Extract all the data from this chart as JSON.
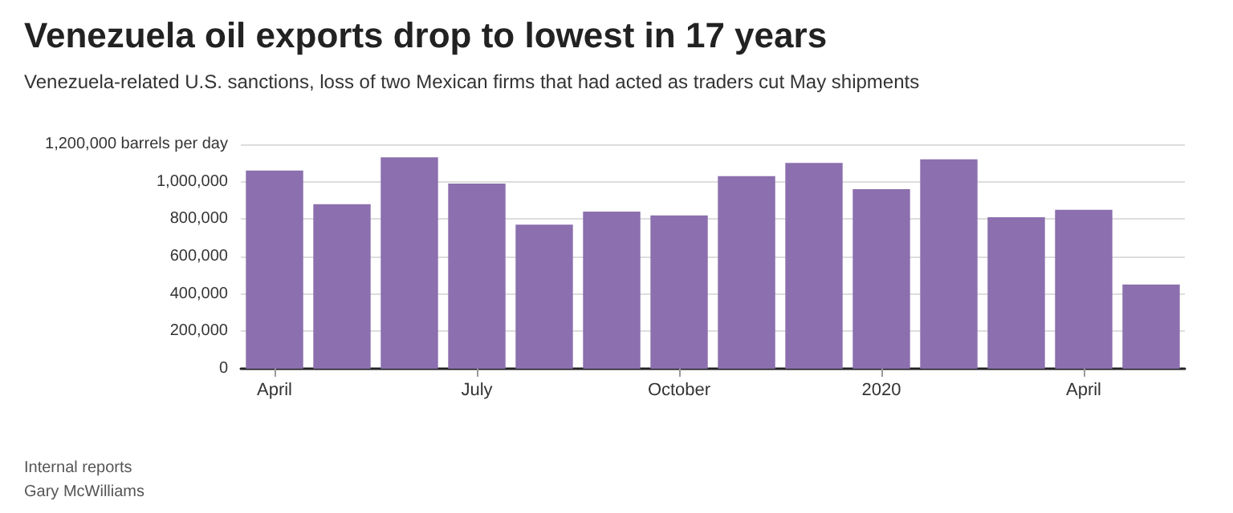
{
  "chart_data": {
    "type": "bar",
    "title": "Venezuela oil exports drop to lowest in 17 years",
    "subtitle": "Venezuela-related U.S. sanctions, loss of two Mexican firms that had acted as traders cut May shipments",
    "categories": [
      "April",
      null,
      null,
      "July",
      null,
      null,
      "October",
      null,
      null,
      "2020",
      null,
      null,
      "April",
      null
    ],
    "values": [
      1060000,
      880000,
      1130000,
      990000,
      770000,
      840000,
      820000,
      1030000,
      1100000,
      960000,
      1120000,
      810000,
      850000,
      450000
    ],
    "color": "#8b6fae",
    "ylim": [
      0,
      1200000
    ],
    "yticks": [
      0,
      {
        "value": 200000,
        "label": "200,000"
      },
      {
        "value": 400000,
        "label": "400,000"
      },
      {
        "value": 600000,
        "label": "600,000"
      },
      {
        "value": 800000,
        "label": "800,000"
      },
      {
        "value": 1000000,
        "label": "1,000,000"
      },
      {
        "value": 1200000,
        "label": "1,200,000 barrels per day"
      }
    ],
    "grid": "y",
    "annotations": [
      "Internal reports",
      "Gary McWilliams"
    ]
  }
}
